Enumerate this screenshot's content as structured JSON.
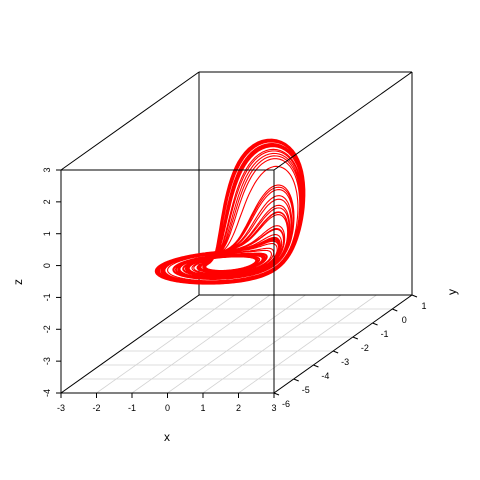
{
  "chart_data": {
    "type": "scatter3d",
    "title": "",
    "xlabel": "x",
    "ylabel": "y",
    "zlabel": "z",
    "xlim": [
      -3,
      3
    ],
    "ylim": [
      -6,
      1
    ],
    "zlim": [
      -4,
      3
    ],
    "x_ticks": [
      "-3",
      "-2",
      "-1",
      "0",
      "1",
      "2",
      "3"
    ],
    "y_ticks": [
      "-6",
      "-5",
      "-4",
      "-3",
      "-2",
      "-1",
      "0",
      "1"
    ],
    "z_ticks": [
      "-4",
      "-3",
      "-2",
      "-1",
      "0",
      "1",
      "2",
      "3"
    ],
    "box": true,
    "grid": "floor",
    "series": [
      {
        "color": "#ff0000",
        "style": "line",
        "description_points": [
          [
            -1.3,
            -3.0,
            1.5
          ],
          [
            -1.8,
            -3.8,
            0.3
          ],
          [
            -1.5,
            -3.6,
            -0.9
          ],
          [
            -0.3,
            -3.0,
            -1.4
          ],
          [
            1.2,
            -2.2,
            -1.1
          ],
          [
            2.3,
            -1.6,
            -0.3
          ],
          [
            2.6,
            -1.8,
            0.7
          ],
          [
            2.2,
            -2.4,
            1.6
          ],
          [
            1.1,
            -3.1,
            2.2
          ],
          [
            -0.2,
            -3.4,
            2.4
          ],
          [
            -1.0,
            -3.2,
            2.1
          ],
          [
            -1.3,
            -3.0,
            1.5
          ]
        ]
      }
    ]
  }
}
